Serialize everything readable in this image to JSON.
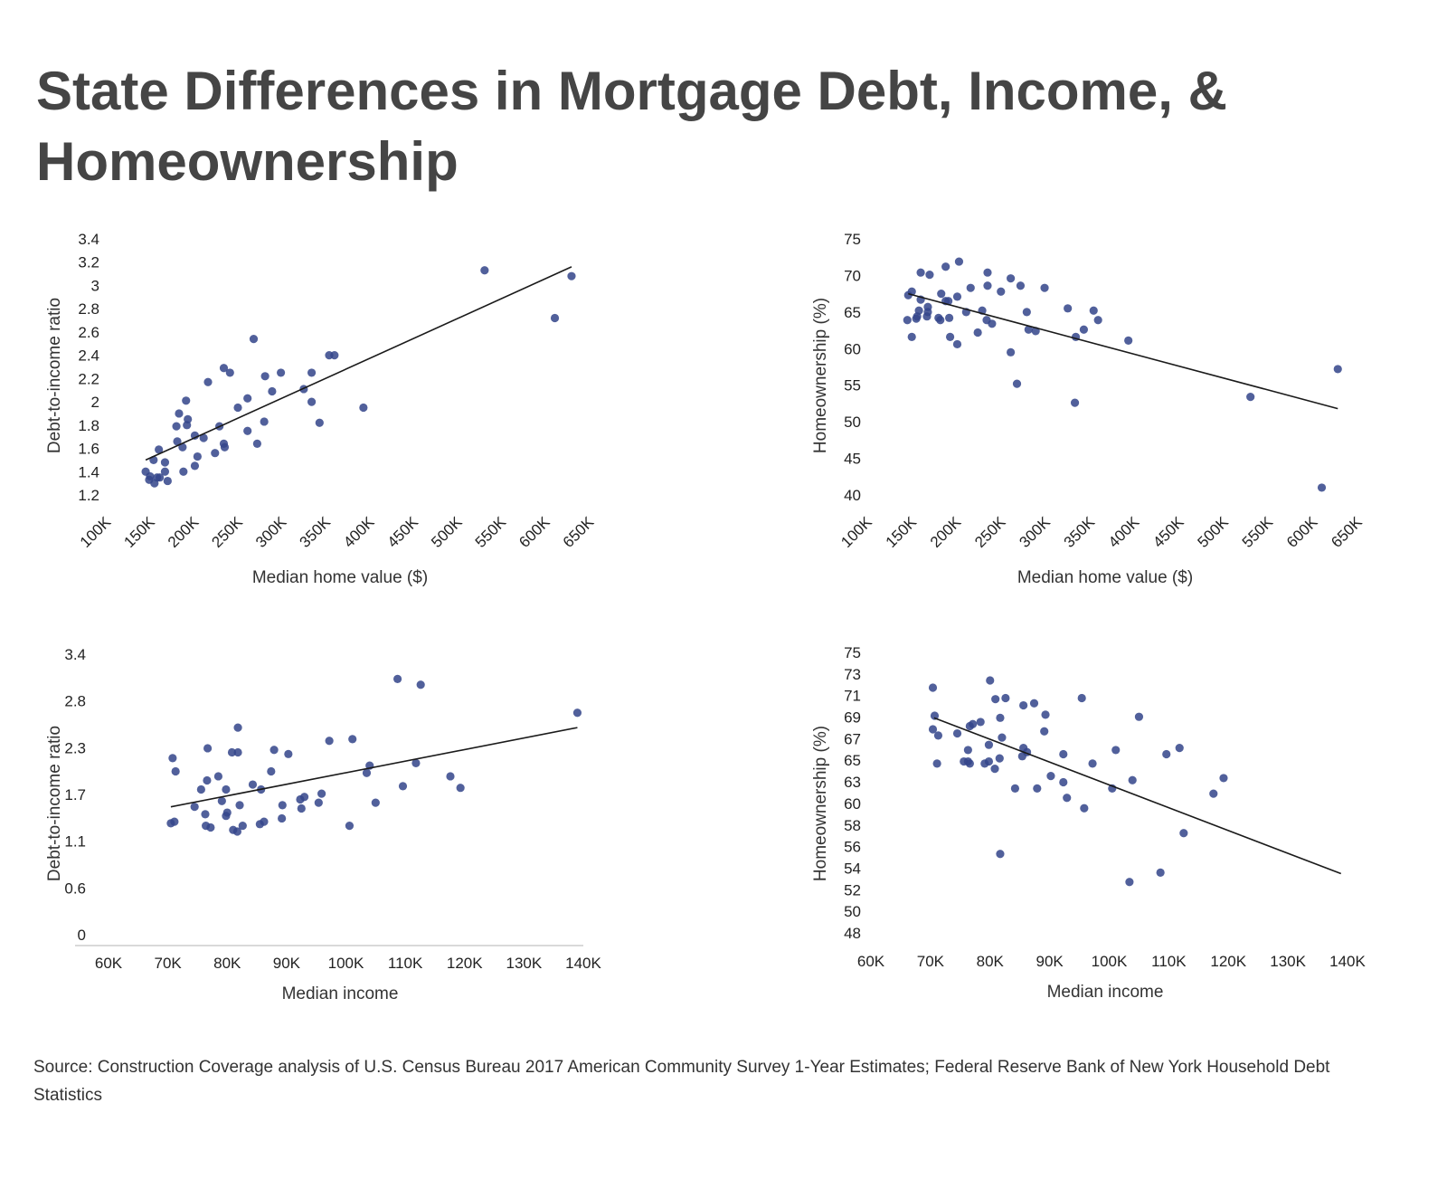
{
  "title": "State Differences in Mortgage Debt, Income, & Homeownership",
  "source": "Source: Construction Coverage analysis of U.S. Census Bureau 2017 American Community Survey 1-Year Estimates; Federal Reserve Bank of New York Household Debt Statistics",
  "colors": {
    "points": "#34468a",
    "trendline": "#1a1a1a"
  },
  "chart_data": [
    {
      "type": "scatter",
      "xlabel": "Median home value ($)",
      "ylabel": "Debt-to-income ratio",
      "xlim": [
        100,
        650
      ],
      "ylim": [
        1.2,
        3.4
      ],
      "x_unit": "thousands of dollars",
      "xticks": [
        "100K",
        "150K",
        "200K",
        "250K",
        "300K",
        "350K",
        "400K",
        "450K",
        "500K",
        "550K",
        "600K",
        "650K"
      ],
      "yticks": [
        "1.2",
        "1.4",
        "1.6",
        "1.8",
        "2",
        "2.2",
        "2.4",
        "2.6",
        "2.8",
        "3",
        "3.2",
        "3.4"
      ],
      "trendline": [
        [
          149,
          1.5
        ],
        [
          634,
          3.16
        ]
      ],
      "points": [
        [
          149,
          1.4
        ],
        [
          154,
          1.36
        ],
        [
          153,
          1.33
        ],
        [
          159,
          1.3
        ],
        [
          158,
          1.5
        ],
        [
          164,
          1.59
        ],
        [
          162,
          1.35
        ],
        [
          165,
          1.35
        ],
        [
          171,
          1.48
        ],
        [
          171,
          1.4
        ],
        [
          174,
          1.32
        ],
        [
          184,
          1.79
        ],
        [
          185,
          1.66
        ],
        [
          187,
          1.9
        ],
        [
          191,
          1.61
        ],
        [
          192,
          1.4
        ],
        [
          195,
          2.01
        ],
        [
          197,
          1.85
        ],
        [
          196,
          1.8
        ],
        [
          205,
          1.71
        ],
        [
          205,
          1.45
        ],
        [
          208,
          1.53
        ],
        [
          215,
          1.69
        ],
        [
          220,
          2.17
        ],
        [
          228,
          1.56
        ],
        [
          233,
          1.79
        ],
        [
          238,
          2.29
        ],
        [
          238,
          1.64
        ],
        [
          239,
          1.61
        ],
        [
          245,
          2.25
        ],
        [
          254,
          1.95
        ],
        [
          265,
          2.03
        ],
        [
          265,
          1.75
        ],
        [
          272,
          2.54
        ],
        [
          276,
          1.64
        ],
        [
          284,
          1.83
        ],
        [
          285,
          2.22
        ],
        [
          293,
          2.09
        ],
        [
          303,
          2.25
        ],
        [
          329,
          2.11
        ],
        [
          338,
          2.0
        ],
        [
          338,
          2.25
        ],
        [
          347,
          1.82
        ],
        [
          358,
          2.4
        ],
        [
          364,
          2.4
        ],
        [
          397,
          1.95
        ],
        [
          535,
          3.13
        ],
        [
          615,
          2.72
        ],
        [
          634,
          3.08
        ]
      ]
    },
    {
      "type": "scatter",
      "xlabel": "Median home value ($)",
      "ylabel": "Homeownership (%)",
      "xlim": [
        100,
        650
      ],
      "ylim": [
        40,
        75
      ],
      "x_unit": "thousands of dollars",
      "xticks": [
        "100K",
        "150K",
        "200K",
        "250K",
        "300K",
        "350K",
        "400K",
        "450K",
        "500K",
        "550K",
        "600K",
        "650K"
      ],
      "yticks": [
        "40",
        "45",
        "50",
        "55",
        "60",
        "65",
        "70",
        "75"
      ],
      "trendline": [
        [
          150,
          67.5
        ],
        [
          632,
          51.8
        ]
      ],
      "points": [
        [
          150,
          67.3
        ],
        [
          149,
          63.9
        ],
        [
          154,
          67.8
        ],
        [
          154,
          61.6
        ],
        [
          159,
          64.1
        ],
        [
          160,
          64.4
        ],
        [
          162,
          65.2
        ],
        [
          164,
          70.4
        ],
        [
          164,
          66.7
        ],
        [
          172,
          65.7
        ],
        [
          172,
          65.0
        ],
        [
          171,
          64.4
        ],
        [
          174,
          70.1
        ],
        [
          184,
          64.2
        ],
        [
          186,
          63.9
        ],
        [
          187,
          67.5
        ],
        [
          192,
          71.2
        ],
        [
          192,
          66.5
        ],
        [
          195,
          66.5
        ],
        [
          196,
          64.2
        ],
        [
          197,
          61.6
        ],
        [
          205,
          67.1
        ],
        [
          205,
          60.6
        ],
        [
          207,
          71.9
        ],
        [
          215,
          65.0
        ],
        [
          220,
          68.3
        ],
        [
          228,
          62.2
        ],
        [
          233,
          65.2
        ],
        [
          239,
          70.4
        ],
        [
          239,
          68.6
        ],
        [
          238,
          63.9
        ],
        [
          244,
          63.4
        ],
        [
          254,
          67.8
        ],
        [
          265,
          69.6
        ],
        [
          265,
          59.5
        ],
        [
          272,
          55.2
        ],
        [
          276,
          68.6
        ],
        [
          283,
          65.0
        ],
        [
          285,
          62.6
        ],
        [
          293,
          62.4
        ],
        [
          303,
          68.3
        ],
        [
          329,
          65.5
        ],
        [
          337,
          52.6
        ],
        [
          338,
          61.6
        ],
        [
          347,
          62.6
        ],
        [
          358,
          65.2
        ],
        [
          363,
          63.9
        ],
        [
          397,
          61.1
        ],
        [
          534,
          53.4
        ],
        [
          614,
          41.0
        ],
        [
          632,
          57.2
        ]
      ]
    },
    {
      "type": "scatter",
      "xlabel": "Median income",
      "ylabel": "Debt-to-income ratio",
      "xlim": [
        60,
        140
      ],
      "ylim": [
        0,
        3.4
      ],
      "x_unit": "thousands of dollars",
      "xticks": [
        "60K",
        "70K",
        "80K",
        "90K",
        "100K",
        "110K",
        "120K",
        "130K",
        "140K"
      ],
      "yticks": [
        "0",
        "0.6",
        "1.1",
        "1.7",
        "2.3",
        "2.8",
        "3.4"
      ],
      "trendline": [
        [
          70.5,
          1.55
        ],
        [
          139.0,
          2.51
        ]
      ],
      "points": [
        [
          70.5,
          1.35
        ],
        [
          71.1,
          1.37
        ],
        [
          70.8,
          2.14
        ],
        [
          71.3,
          1.98
        ],
        [
          74.5,
          1.55
        ],
        [
          75.6,
          1.76
        ],
        [
          76.3,
          1.46
        ],
        [
          76.4,
          1.32
        ],
        [
          76.7,
          2.26
        ],
        [
          76.6,
          1.87
        ],
        [
          77.2,
          1.3
        ],
        [
          78.5,
          1.92
        ],
        [
          79.1,
          1.62
        ],
        [
          79.8,
          1.76
        ],
        [
          79.8,
          1.44
        ],
        [
          80.0,
          1.48
        ],
        [
          80.8,
          2.21
        ],
        [
          81.8,
          2.21
        ],
        [
          81.8,
          2.51
        ],
        [
          81.0,
          1.27
        ],
        [
          81.7,
          1.25
        ],
        [
          82.1,
          1.57
        ],
        [
          82.6,
          1.32
        ],
        [
          84.3,
          1.82
        ],
        [
          85.5,
          1.34
        ],
        [
          85.7,
          1.76
        ],
        [
          86.2,
          1.37
        ],
        [
          87.4,
          1.98
        ],
        [
          87.9,
          2.24
        ],
        [
          89.2,
          1.41
        ],
        [
          89.3,
          1.57
        ],
        [
          90.3,
          2.19
        ],
        [
          92.3,
          1.64
        ],
        [
          93.0,
          1.67
        ],
        [
          92.5,
          1.53
        ],
        [
          95.4,
          1.6
        ],
        [
          95.9,
          1.71
        ],
        [
          97.2,
          2.35
        ],
        [
          100.6,
          1.32
        ],
        [
          101.1,
          2.37
        ],
        [
          103.5,
          1.96
        ],
        [
          104.0,
          2.05
        ],
        [
          105.0,
          1.6
        ],
        [
          108.7,
          3.1
        ],
        [
          109.6,
          1.8
        ],
        [
          111.8,
          2.08
        ],
        [
          112.6,
          3.03
        ],
        [
          117.6,
          1.92
        ],
        [
          119.3,
          1.78
        ],
        [
          139.0,
          2.69
        ]
      ]
    },
    {
      "type": "scatter",
      "xlabel": "Median income",
      "ylabel": "Homeownership (%)",
      "xlim": [
        60,
        140
      ],
      "ylim": [
        48,
        75
      ],
      "x_unit": "thousands of dollars",
      "xticks": [
        "60K",
        "70K",
        "80K",
        "90K",
        "100K",
        "110K",
        "120K",
        "130K",
        "140K"
      ],
      "yticks": [
        "48",
        "50",
        "52",
        "54",
        "56",
        "58",
        "60",
        "63",
        "65",
        "67",
        "69",
        "71",
        "73",
        "75"
      ],
      "trendline": [
        [
          70.6,
          68.7
        ],
        [
          138.9,
          53.7
        ]
      ],
      "points": [
        [
          70.4,
          71.6
        ],
        [
          70.7,
          68.9
        ],
        [
          70.4,
          67.6
        ],
        [
          71.3,
          67.0
        ],
        [
          71.1,
          64.3
        ],
        [
          74.5,
          67.2
        ],
        [
          75.6,
          64.5
        ],
        [
          76.3,
          64.5
        ],
        [
          76.6,
          64.3
        ],
        [
          76.3,
          65.6
        ],
        [
          76.6,
          67.9
        ],
        [
          77.1,
          68.1
        ],
        [
          78.4,
          68.3
        ],
        [
          79.1,
          64.3
        ],
        [
          79.8,
          64.5
        ],
        [
          79.8,
          66.1
        ],
        [
          80.0,
          72.3
        ],
        [
          80.8,
          63.8
        ],
        [
          80.9,
          70.5
        ],
        [
          81.6,
          64.8
        ],
        [
          81.7,
          68.7
        ],
        [
          82.0,
          66.8
        ],
        [
          82.6,
          70.6
        ],
        [
          81.7,
          55.6
        ],
        [
          84.2,
          61.9
        ],
        [
          85.4,
          65.0
        ],
        [
          85.6,
          65.8
        ],
        [
          86.2,
          65.4
        ],
        [
          85.6,
          69.9
        ],
        [
          87.4,
          70.1
        ],
        [
          87.9,
          61.9
        ],
        [
          89.1,
          67.4
        ],
        [
          89.3,
          69.0
        ],
        [
          90.2,
          63.1
        ],
        [
          92.3,
          65.2
        ],
        [
          92.3,
          62.5
        ],
        [
          92.9,
          61.0
        ],
        [
          95.4,
          70.6
        ],
        [
          95.8,
          60.0
        ],
        [
          97.2,
          64.3
        ],
        [
          100.5,
          61.9
        ],
        [
          101.1,
          65.6
        ],
        [
          103.4,
          52.9
        ],
        [
          103.9,
          62.7
        ],
        [
          105.0,
          68.8
        ],
        [
          108.6,
          53.8
        ],
        [
          109.6,
          65.2
        ],
        [
          111.8,
          65.8
        ],
        [
          112.5,
          57.6
        ],
        [
          117.5,
          61.4
        ],
        [
          119.2,
          62.9
        ]
      ]
    }
  ]
}
